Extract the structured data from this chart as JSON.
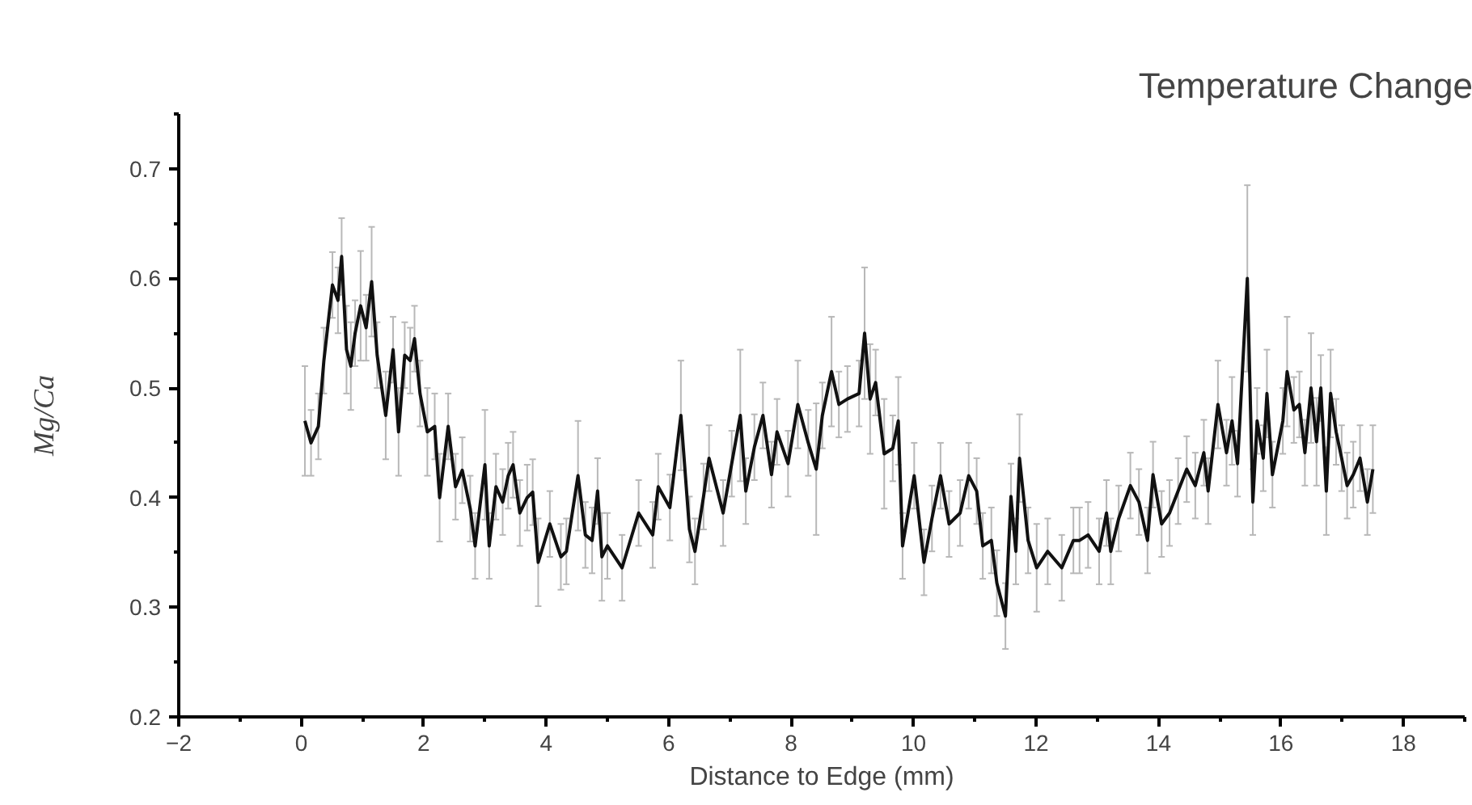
{
  "chart_data": {
    "type": "line",
    "title": "Temperature Change",
    "xlabel": "Distance to Edge (mm)",
    "ylabel": "Mg/Ca",
    "xlim": [
      -2,
      19
    ],
    "ylim": [
      0.2,
      0.75
    ],
    "xticks": [
      -2,
      0,
      2,
      4,
      6,
      8,
      10,
      12,
      14,
      16,
      18
    ],
    "yticks": [
      0.2,
      0.3,
      0.4,
      0.5,
      0.6,
      0.7
    ],
    "grid": false,
    "marker": "none",
    "line_style": "solid",
    "series": [
      {
        "color": "#111111",
        "x": [
          0.06,
          0.16,
          0.28,
          0.37,
          0.51,
          0.6,
          0.66,
          0.74,
          0.81,
          0.88,
          0.97,
          1.06,
          1.15,
          1.24,
          1.38,
          1.5,
          1.59,
          1.69,
          1.78,
          1.85,
          1.94,
          2.06,
          2.18,
          2.26,
          2.4,
          2.52,
          2.63,
          2.76,
          2.84,
          3.0,
          3.07,
          3.18,
          3.29,
          3.38,
          3.46,
          3.57,
          3.69,
          3.78,
          3.87,
          4.06,
          4.24,
          4.33,
          4.52,
          4.64,
          4.75,
          4.84,
          4.91,
          5.0,
          5.24,
          5.51,
          5.74,
          5.83,
          6.02,
          6.2,
          6.34,
          6.43,
          6.57,
          6.66,
          6.89,
          7.03,
          7.17,
          7.26,
          7.4,
          7.54,
          7.68,
          7.77,
          7.95,
          8.11,
          8.28,
          8.41,
          8.51,
          8.66,
          8.78,
          8.92,
          9.11,
          9.2,
          9.29,
          9.38,
          9.52,
          9.66,
          9.75,
          9.82,
          10.01,
          10.17,
          10.3,
          10.44,
          10.58,
          10.76,
          10.9,
          11.03,
          11.13,
          11.27,
          11.36,
          11.5,
          11.59,
          11.67,
          11.73,
          11.87,
          12.01,
          12.19,
          12.42,
          12.61,
          12.71,
          12.85,
          13.03,
          13.15,
          13.22,
          13.35,
          13.54,
          13.68,
          13.82,
          13.91,
          14.05,
          14.18,
          14.32,
          14.46,
          14.6,
          14.74,
          14.81,
          14.97,
          15.11,
          15.2,
          15.29,
          15.45,
          15.54,
          15.61,
          15.71,
          15.77,
          15.86,
          16.03,
          16.1,
          16.21,
          16.3,
          16.39,
          16.49,
          16.58,
          16.65,
          16.74,
          16.81,
          16.9,
          16.99,
          17.08,
          17.18,
          17.29,
          17.41,
          17.5
        ],
        "values": [
          0.47,
          0.45,
          0.465,
          0.525,
          0.594,
          0.58,
          0.62,
          0.535,
          0.52,
          0.55,
          0.575,
          0.555,
          0.597,
          0.53,
          0.475,
          0.535,
          0.46,
          0.53,
          0.525,
          0.545,
          0.495,
          0.46,
          0.465,
          0.4,
          0.465,
          0.41,
          0.425,
          0.39,
          0.356,
          0.43,
          0.356,
          0.41,
          0.396,
          0.42,
          0.43,
          0.386,
          0.4,
          0.405,
          0.341,
          0.376,
          0.346,
          0.351,
          0.42,
          0.366,
          0.361,
          0.406,
          0.346,
          0.356,
          0.336,
          0.386,
          0.366,
          0.41,
          0.391,
          0.475,
          0.371,
          0.351,
          0.401,
          0.436,
          0.386,
          0.431,
          0.475,
          0.406,
          0.446,
          0.475,
          0.421,
          0.46,
          0.431,
          0.485,
          0.45,
          0.426,
          0.475,
          0.515,
          0.485,
          0.49,
          0.495,
          0.55,
          0.49,
          0.505,
          0.44,
          0.445,
          0.47,
          0.356,
          0.42,
          0.341,
          0.381,
          0.42,
          0.376,
          0.386,
          0.42,
          0.406,
          0.356,
          0.361,
          0.322,
          0.292,
          0.401,
          0.351,
          0.436,
          0.361,
          0.336,
          0.351,
          0.336,
          0.361,
          0.361,
          0.366,
          0.351,
          0.386,
          0.351,
          0.381,
          0.411,
          0.396,
          0.361,
          0.421,
          0.376,
          0.386,
          0.406,
          0.426,
          0.411,
          0.441,
          0.406,
          0.485,
          0.441,
          0.47,
          0.431,
          0.6,
          0.396,
          0.47,
          0.436,
          0.495,
          0.421,
          0.47,
          0.515,
          0.48,
          0.485,
          0.441,
          0.5,
          0.451,
          0.5,
          0.406,
          0.495,
          0.46,
          0.436,
          0.411,
          0.421,
          0.436,
          0.396,
          0.426
        ],
        "errors": [
          0.05,
          0.03,
          0.03,
          0.03,
          0.03,
          0.03,
          0.035,
          0.04,
          0.04,
          0.03,
          0.05,
          0.03,
          0.05,
          0.03,
          0.04,
          0.03,
          0.04,
          0.03,
          0.03,
          0.03,
          0.03,
          0.04,
          0.03,
          0.04,
          0.03,
          0.03,
          0.03,
          0.03,
          0.03,
          0.05,
          0.03,
          0.03,
          0.03,
          0.03,
          0.03,
          0.03,
          0.03,
          0.03,
          0.04,
          0.03,
          0.03,
          0.03,
          0.05,
          0.03,
          0.03,
          0.03,
          0.04,
          0.03,
          0.03,
          0.03,
          0.03,
          0.03,
          0.03,
          0.05,
          0.03,
          0.03,
          0.03,
          0.03,
          0.03,
          0.03,
          0.06,
          0.03,
          0.03,
          0.03,
          0.03,
          0.03,
          0.03,
          0.04,
          0.03,
          0.06,
          0.03,
          0.05,
          0.03,
          0.03,
          0.03,
          0.06,
          0.05,
          0.03,
          0.05,
          0.03,
          0.04,
          0.03,
          0.03,
          0.03,
          0.03,
          0.03,
          0.03,
          0.03,
          0.03,
          0.03,
          0.03,
          0.03,
          0.03,
          0.03,
          0.03,
          0.03,
          0.04,
          0.03,
          0.04,
          0.03,
          0.03,
          0.03,
          0.03,
          0.03,
          0.03,
          0.03,
          0.03,
          0.03,
          0.03,
          0.03,
          0.03,
          0.03,
          0.03,
          0.03,
          0.03,
          0.03,
          0.03,
          0.03,
          0.03,
          0.04,
          0.03,
          0.04,
          0.03,
          0.085,
          0.03,
          0.03,
          0.03,
          0.04,
          0.03,
          0.03,
          0.05,
          0.03,
          0.03,
          0.03,
          0.05,
          0.04,
          0.03,
          0.04,
          0.04,
          0.03,
          0.03,
          0.03,
          0.03,
          0.03,
          0.03,
          0.04
        ]
      }
    ]
  }
}
